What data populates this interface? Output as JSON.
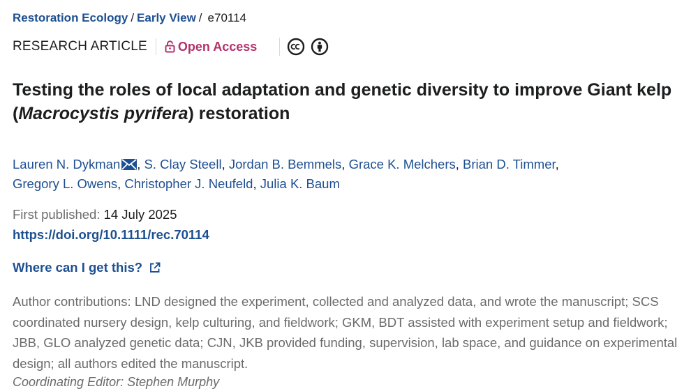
{
  "breadcrumb": {
    "journal": "Restoration Ecology",
    "section": "Early View",
    "separator": "/",
    "article_id": "e70114"
  },
  "meta": {
    "article_type": "RESEARCH ARTICLE",
    "open_access": "Open Access",
    "license_icons": [
      "creative-commons-icon",
      "attribution-icon"
    ]
  },
  "title": {
    "main": "Testing the roles of local adaptation and genetic diversity to improve Giant kelp",
    "open_paren": "(",
    "species": "Macrocystis pyrifera",
    "close": ") restoration"
  },
  "authors": [
    "Lauren N. Dykman",
    "S. Clay Steell",
    "Jordan B. Bemmels",
    "Grace K. Melchers",
    "Brian D. Timmer",
    "Gregory L. Owens",
    "Christopher J. Neufeld",
    "Julia K. Baum"
  ],
  "author_separator": ",",
  "publication": {
    "label": "First published:",
    "date": "14 July 2025",
    "doi": "https://doi.org/10.1111/rec.70114"
  },
  "where_link": "Where can I get this?",
  "contributions": "Author contributions: LND designed the experiment, collected and analyzed data, and wrote the manuscript; SCS coordinated nursery design, kelp culturing, and fieldwork; GKM, BDT assisted with experiment setup and fieldwork; JBB, GLO analyzed genetic data; CJN, JKB provided funding, supervision, lab space, and guidance on experimental design; all authors edited the manuscript.",
  "editor": "Coordinating Editor: Stephen Murphy",
  "colors": {
    "link": "#1d4f91",
    "open_access": "#b3326b",
    "muted": "#6b6b6b",
    "text": "#1c1d1e"
  }
}
